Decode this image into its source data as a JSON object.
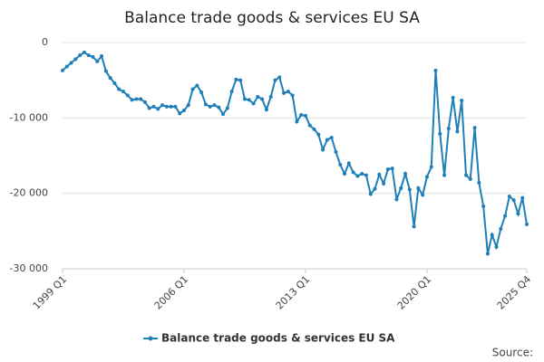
{
  "chart_data": {
    "type": "line",
    "title": "Balance trade goods & services EU SA",
    "categories": [
      "1999 Q1",
      null,
      null,
      null,
      null,
      null,
      null,
      null,
      null,
      null,
      null,
      null,
      null,
      null,
      null,
      null,
      null,
      null,
      null,
      null,
      null,
      null,
      null,
      null,
      null,
      null,
      null,
      null,
      "2006 Q1",
      null,
      null,
      null,
      null,
      null,
      null,
      null,
      null,
      null,
      null,
      null,
      null,
      null,
      null,
      null,
      null,
      null,
      null,
      null,
      null,
      null,
      null,
      null,
      null,
      null,
      null,
      null,
      "2013 Q1",
      null,
      null,
      null,
      null,
      null,
      null,
      null,
      null,
      null,
      null,
      null,
      null,
      null,
      null,
      null,
      null,
      null,
      null,
      null,
      null,
      null,
      null,
      null,
      null,
      null,
      null,
      null,
      "2020 Q1",
      null,
      null,
      null,
      null,
      null,
      null,
      null,
      null,
      null,
      null,
      null,
      null,
      null,
      null,
      null,
      null,
      null,
      null,
      null,
      null,
      null,
      null,
      "2025 Q4"
    ],
    "series": [
      {
        "name": "Balance trade goods & services EU SA",
        "color": "#1f7fb8",
        "values": [
          -3700,
          -3200,
          -2700,
          -2200,
          -1700,
          -1300,
          -1700,
          -1900,
          -2500,
          -1800,
          -3800,
          -4700,
          -5400,
          -6200,
          -6500,
          -7000,
          -7600,
          -7500,
          -7500,
          -7900,
          -8700,
          -8500,
          -8800,
          -8300,
          -8500,
          -8500,
          -8500,
          -9400,
          -9000,
          -8300,
          -6200,
          -5700,
          -6600,
          -8200,
          -8500,
          -8300,
          -8600,
          -9500,
          -8700,
          -6500,
          -4900,
          -5000,
          -7500,
          -7600,
          -8100,
          -7200,
          -7500,
          -8900,
          -7200,
          -5000,
          -4600,
          -6700,
          -6500,
          -7000,
          -10500,
          -9600,
          -9700,
          -11000,
          -11500,
          -12200,
          -14200,
          -12900,
          -12600,
          -14500,
          -16200,
          -17400,
          -16000,
          -17200,
          -17700,
          -17400,
          -17600,
          -20100,
          -19400,
          -17500,
          -18700,
          -16800,
          -16700,
          -20800,
          -19300,
          -17400,
          -19500,
          -24400,
          -19300,
          -20200,
          -17800,
          -16500,
          -3700,
          -12100,
          -17600,
          -11400,
          -7300,
          -11800,
          -7700,
          -17600,
          -18100,
          -11300,
          -18600,
          -21700,
          -28000,
          -25500,
          -27100,
          -24700,
          -23000,
          -20400,
          -20900,
          -22700,
          -20600,
          -24100
        ]
      }
    ],
    "ylim": [
      -30000,
      0
    ],
    "yticks": [
      {
        "value": -30000,
        "label": "-30 000"
      },
      {
        "value": -20000,
        "label": "-20 000"
      },
      {
        "value": -10000,
        "label": "-10 000"
      },
      0
    ],
    "grid": true,
    "legend": "bottom",
    "source": "Source:"
  }
}
